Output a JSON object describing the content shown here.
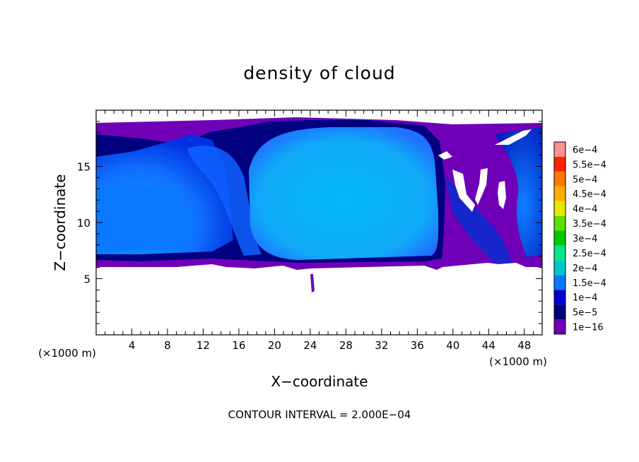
{
  "chart_data": {
    "type": "heatmap",
    "title": "density of cloud",
    "xlabel": "X−coordinate",
    "ylabel": "Z−coordinate",
    "x_unit": "(×1000 m)",
    "y_unit": "(×1000 m)",
    "footnote": "CONTOUR INTERVAL = 2.000E−04",
    "xlim": [
      0,
      50
    ],
    "ylim": [
      0,
      20
    ],
    "x_ticks": [
      4,
      8,
      12,
      16,
      20,
      24,
      28,
      32,
      36,
      40,
      44,
      48
    ],
    "y_ticks": [
      5,
      10,
      15
    ],
    "legend_position": "right",
    "colorbar": {
      "labels": [
        "1e−16",
        "5e−5",
        "1e−4",
        "1.5e−4",
        "2e−4",
        "2.5e−4",
        "3e−4",
        "3.5e−4",
        "4e−4",
        "4.5e−4",
        "5e−4",
        "5.5e−4",
        "6e−4"
      ],
      "colors": [
        "#7000b8",
        "#000078",
        "#0000d2",
        "#0a78ff",
        "#00c8c8",
        "#00e890",
        "#00c800",
        "#60e000",
        "#e8e800",
        "#ffb000",
        "#ff7800",
        "#ff2000",
        "#ff9090"
      ]
    }
  }
}
